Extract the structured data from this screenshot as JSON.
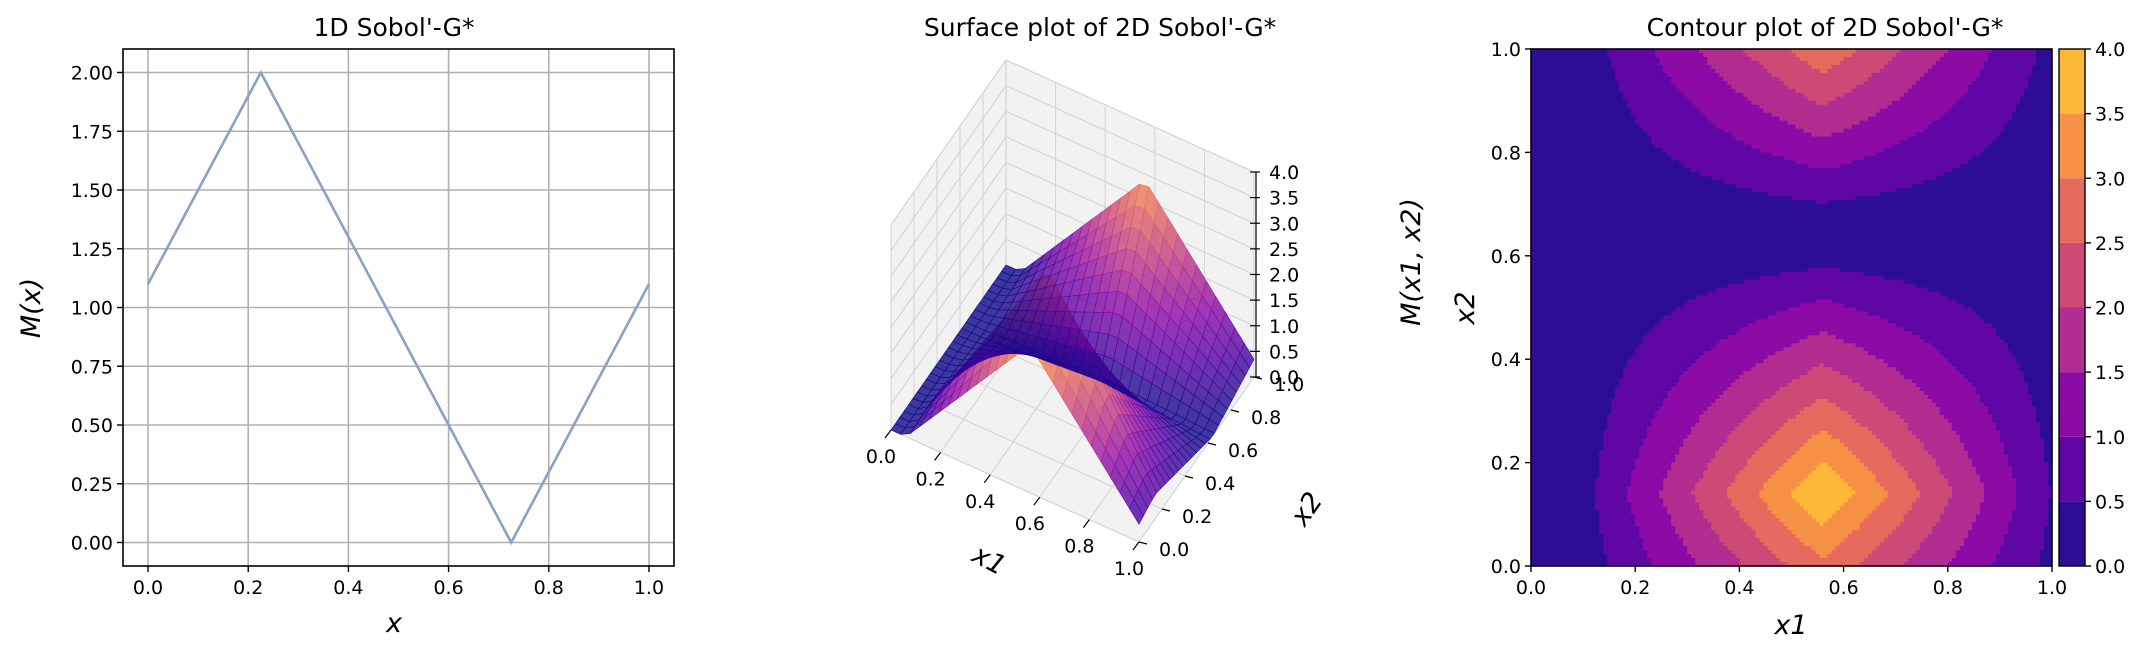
{
  "chart_data": [
    {
      "type": "line",
      "title": "1D Sobol'-G*",
      "xlabel": "x",
      "ylabel": "M(x)",
      "x": [
        0.0,
        0.225,
        0.725,
        1.0
      ],
      "series": [
        {
          "values": [
            1.1,
            2.0,
            0.0,
            1.1
          ],
          "color": "#8aa0c8"
        }
      ],
      "xlim": [
        -0.05,
        1.05
      ],
      "ylim": [
        -0.1,
        2.1
      ],
      "xticks": [
        "0.0",
        "0.2",
        "0.4",
        "0.6",
        "0.8",
        "1.0"
      ],
      "yticks": [
        "0.00",
        "0.25",
        "0.50",
        "0.75",
        "1.00",
        "1.25",
        "1.50",
        "1.75",
        "2.00"
      ],
      "grid": true
    },
    {
      "type": "surface",
      "title": "Surface plot of 2D Sobol'-G*",
      "xlabel": "x1",
      "ylabel": "x2",
      "zlabel": "M(x1, x2)",
      "xlim": [
        0,
        1
      ],
      "ylim": [
        0,
        1
      ],
      "zlim": [
        0,
        4
      ],
      "xticks": [
        "0.0",
        "0.2",
        "0.4",
        "0.6",
        "0.8",
        "1.0"
      ],
      "yticks": [
        "0.0",
        "0.2",
        "0.4",
        "0.6",
        "0.8",
        "1.0"
      ],
      "zticks": [
        "0.0",
        "0.5",
        "1.0",
        "1.5",
        "2.0",
        "2.5",
        "3.0",
        "3.5",
        "4.0"
      ],
      "colormap": "plasma",
      "grid": true
    },
    {
      "type": "heatmap",
      "title": "Contour plot of 2D Sobol'-G*",
      "xlabel": "x1",
      "ylabel": "x2",
      "xlim": [
        0,
        1
      ],
      "ylim": [
        0,
        1
      ],
      "xticks": [
        "0.0",
        "0.2",
        "0.4",
        "0.6",
        "0.8",
        "1.0"
      ],
      "yticks": [
        "0.0",
        "0.2",
        "0.4",
        "0.6",
        "0.8",
        "1.0"
      ],
      "levels": [
        0.0,
        0.5,
        1.0,
        1.5,
        2.0,
        2.5,
        3.0,
        3.5,
        4.0
      ],
      "colorbar_ticks": [
        "0.0",
        "0.5",
        "1.0",
        "1.5",
        "2.0",
        "2.5",
        "3.0",
        "3.5",
        "4.0"
      ],
      "level_colors": [
        "#2d0d94",
        "#6006a5",
        "#8d0ba5",
        "#b12d90",
        "#cd4a76",
        "#e46b5d",
        "#f69044",
        "#fbb937",
        "#f5e525"
      ],
      "function": {
        "a": 0.56,
        "b": 0.14,
        "c": 0.5
      },
      "colormap": "plasma"
    }
  ]
}
